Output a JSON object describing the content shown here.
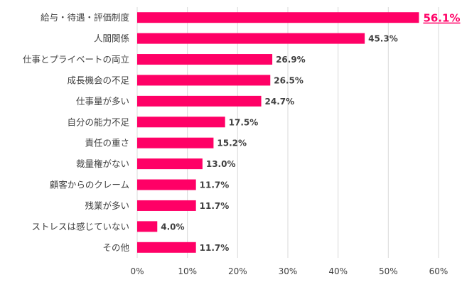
{
  "chart_data": {
    "type": "bar",
    "orientation": "horizontal",
    "categories": [
      "給与・待遇・評価制度",
      "人間関係",
      "仕事とプライベートの両立",
      "成長機会の不足",
      "仕事量が多い",
      "自分の能力不足",
      "責任の重さ",
      "裁量権がない",
      "顧客からのクレーム",
      "残業が多い",
      "ストレスは感じていない",
      "その他"
    ],
    "values": [
      56.1,
      45.3,
      26.9,
      26.5,
      24.7,
      17.5,
      15.2,
      13.0,
      11.7,
      11.7,
      4.0,
      11.7
    ],
    "data_labels": [
      "56.1%",
      "45.3%",
      "26.9%",
      "26.5%",
      "24.7%",
      "17.5%",
      "15.2%",
      "13.0%",
      "11.7%",
      "11.7%",
      "4.0%",
      "11.7%"
    ],
    "x_ticks": [
      "0%",
      "10%",
      "20%",
      "30%",
      "40%",
      "50%",
      "60%"
    ],
    "xlim": [
      0,
      60
    ],
    "grid": "vertical",
    "highlight_index": 0,
    "colors": {
      "bar": "#ff0066",
      "highlight_label": "#ff0066",
      "label": "#404040",
      "grid": "#d9d9d9"
    }
  }
}
